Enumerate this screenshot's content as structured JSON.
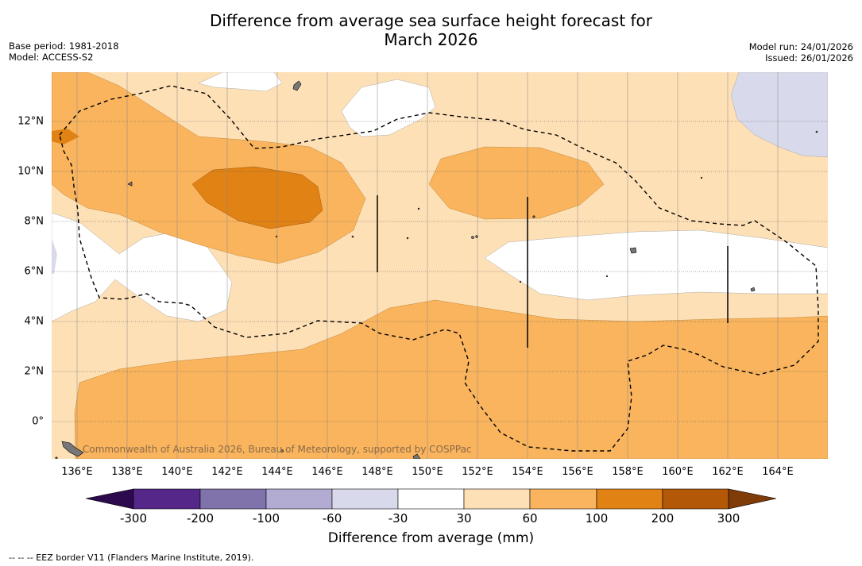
{
  "title_line1": "Difference from average sea surface height forecast for",
  "title_line2": "March 2026",
  "meta_left": {
    "base_period": "Base period: 1981-2018",
    "model": "Model: ACCESS-S2"
  },
  "meta_right": {
    "model_run": "Model run: 24/01/2026",
    "issued": "Issued: 26/01/2026"
  },
  "attribution": "Commonwealth of Australia 2026, Bureau of Meteorology, supported by COSPPac",
  "x_ticks": [
    "136°E",
    "138°E",
    "140°E",
    "142°E",
    "144°E",
    "146°E",
    "148°E",
    "150°E",
    "152°E",
    "154°E",
    "156°E",
    "158°E",
    "160°E",
    "162°E",
    "164°E"
  ],
  "y_ticks": [
    "12°N",
    "10°N",
    "8°N",
    "6°N",
    "4°N",
    "2°N",
    "0°"
  ],
  "colorbar": {
    "ticks": [
      "-300",
      "-200",
      "-100",
      "-60",
      "-30",
      "30",
      "60",
      "100",
      "200",
      "300"
    ],
    "colors": {
      "under": "#2d0a4e",
      "neg300": "#542788",
      "neg200": "#8073ac",
      "neg100": "#b2abd2",
      "neg60": "#d8daeb",
      "neutral": "#ffffff",
      "pos30": "#fee0b6",
      "pos60": "#f9b45d",
      "pos100": "#e08214",
      "pos200": "#b35806",
      "over": "#7f3b08"
    },
    "label": "Difference from average (mm)"
  },
  "footer": "-- -- -- EEZ border V11 (Flanders Marine Institute, 2019)."
}
